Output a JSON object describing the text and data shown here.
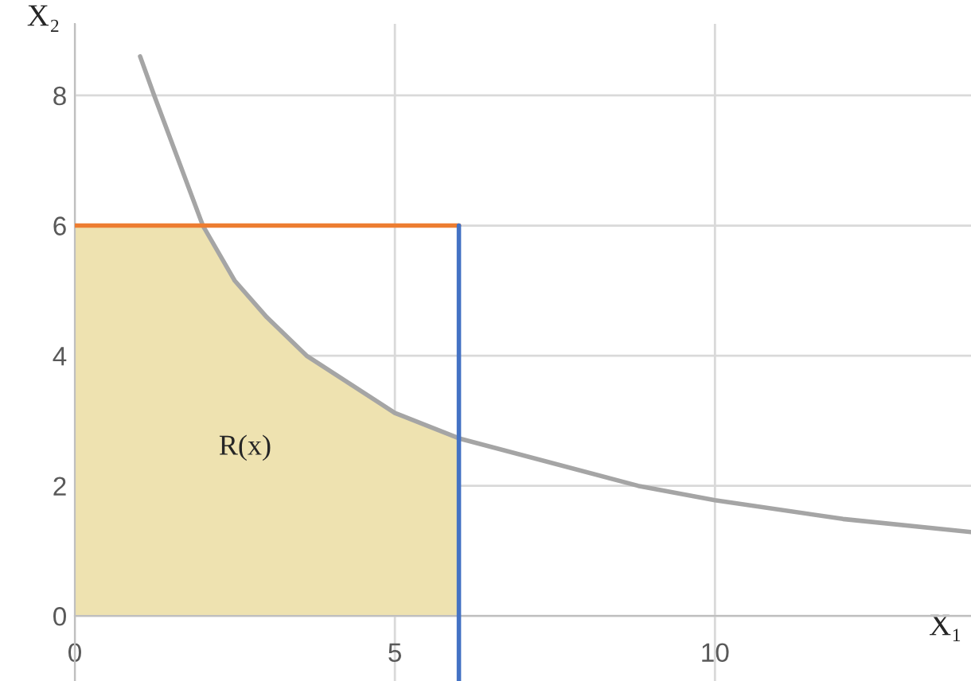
{
  "chart_data": {
    "type": "line",
    "xlabel": "X₁",
    "ylabel": "X₂",
    "xlim": [
      0,
      14
    ],
    "ylim": [
      -1,
      9.1
    ],
    "xticks": [
      0,
      5,
      10
    ],
    "yticks": [
      0,
      2,
      4,
      6,
      8
    ],
    "grid": true,
    "series": [
      {
        "type": "area",
        "color": "#eee2b0",
        "x": [
          0,
          2,
          2.5,
          3,
          3.62,
          5,
          6
        ],
        "values": [
          6,
          6,
          5.15,
          4.59,
          4,
          3.12,
          2.73
        ]
      },
      {
        "color": "#a5a5a5",
        "x": [
          1.02,
          1.24,
          2,
          2.5,
          3,
          3.62,
          5,
          6,
          8.8,
          10,
          12,
          14
        ],
        "values": [
          8.6,
          8,
          6,
          5.15,
          4.59,
          4,
          3.12,
          2.73,
          2,
          1.78,
          1.49,
          1.29
        ]
      },
      {
        "color": "#ed7d31",
        "x": [
          0,
          6
        ],
        "values": [
          6,
          6
        ]
      },
      {
        "color": "#4472c4",
        "x": [
          6,
          6
        ],
        "values": [
          -1,
          6
        ]
      }
    ],
    "annotations": [
      "R(x)"
    ]
  }
}
